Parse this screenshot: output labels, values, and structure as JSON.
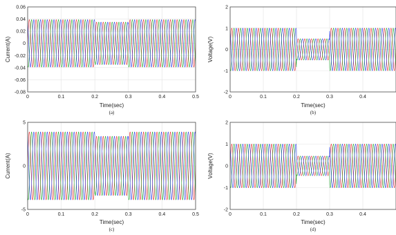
{
  "colors": {
    "phase_a": "#e02020",
    "phase_b": "#10a020",
    "phase_c": "#1a2ee0",
    "grid": "#e3e3e3",
    "axis": "#333333"
  },
  "chart_data": [
    {
      "type": "line",
      "id": "a",
      "caption": "(a)",
      "xlabel": "Time(sec)",
      "ylabel": "Current(A)",
      "xlim": [
        0,
        0.5
      ],
      "ylim": [
        -0.08,
        0.06
      ],
      "xticks": [
        "0",
        "0.1",
        "0.2",
        "0.3",
        "0.4",
        "0.5"
      ],
      "yticks": [
        "-0.08",
        "-0.06",
        "-0.04",
        "-0.02",
        "0",
        "0.02",
        "0.04",
        "0.06"
      ],
      "grid": true,
      "frequency_hz": 50,
      "series": [
        {
          "phase": 0,
          "color": "#e02020"
        },
        {
          "phase": 120,
          "color": "#10a020"
        },
        {
          "phase": 240,
          "color": "#1a2ee0"
        }
      ],
      "amplitude_segments": [
        {
          "from": 0,
          "to": 0.2,
          "amplitude": 0.039
        },
        {
          "from": 0.2,
          "to": 0.3,
          "amplitude": 0.035
        },
        {
          "from": 0.3,
          "to": 0.5,
          "amplitude": 0.039
        }
      ]
    },
    {
      "type": "line",
      "id": "b",
      "caption": "(b)",
      "xlabel": "Time(sec)",
      "ylabel": "Voltage(V)",
      "xlim": [
        0,
        0.5
      ],
      "ylim": [
        -2,
        2
      ],
      "xticks": [
        "0",
        "0.1",
        "0.2",
        "0.3",
        "0.4",
        ""
      ],
      "yticks": [
        "-2",
        "-1",
        "0",
        "1",
        "2"
      ],
      "grid": true,
      "frequency_hz": 50,
      "series": [
        {
          "phase": 0,
          "color": "#e02020"
        },
        {
          "phase": 120,
          "color": "#10a020"
        },
        {
          "phase": 240,
          "color": "#1a2ee0"
        }
      ],
      "amplitude_segments": [
        {
          "from": 0,
          "to": 0.2,
          "amplitude": 1.0
        },
        {
          "from": 0.2,
          "to": 0.3,
          "amplitude": 0.5
        },
        {
          "from": 0.3,
          "to": 0.5,
          "amplitude": 1.0
        }
      ]
    },
    {
      "type": "line",
      "id": "c",
      "caption": "(c)",
      "xlabel": "Time(sec)",
      "ylabel": "Current(A)",
      "xlim": [
        0,
        0.5
      ],
      "ylim": [
        -5,
        5
      ],
      "xticks": [
        "0",
        "0.1",
        "0.2",
        "0.3",
        "0.4",
        "0.5"
      ],
      "yticks": [
        "-5",
        "0",
        "5"
      ],
      "grid": true,
      "frequency_hz": 50,
      "series": [
        {
          "phase": 0,
          "color": "#e02020"
        },
        {
          "phase": 120,
          "color": "#10a020"
        },
        {
          "phase": 240,
          "color": "#1a2ee0"
        }
      ],
      "amplitude_segments": [
        {
          "from": 0,
          "to": 0.2,
          "amplitude": 3.9
        },
        {
          "from": 0.2,
          "to": 0.3,
          "amplitude": 3.4
        },
        {
          "from": 0.3,
          "to": 0.5,
          "amplitude": 3.9
        }
      ]
    },
    {
      "type": "line",
      "id": "d",
      "caption": "(d)",
      "xlabel": "Time(sec)",
      "ylabel": "Voltage(V)",
      "xlim": [
        0,
        0.5
      ],
      "ylim": [
        -2,
        2
      ],
      "xticks": [
        "0",
        "0.1",
        "0.2",
        "0.3",
        "0.4",
        ""
      ],
      "yticks": [
        "-2",
        "-1",
        "0",
        "1",
        "2"
      ],
      "grid": true,
      "frequency_hz": 50,
      "series": [
        {
          "phase": 0,
          "color": "#e02020"
        },
        {
          "phase": 120,
          "color": "#10a020"
        },
        {
          "phase": 240,
          "color": "#1a2ee0"
        }
      ],
      "amplitude_segments": [
        {
          "from": 0,
          "to": 0.2,
          "amplitude": 1.0
        },
        {
          "from": 0.2,
          "to": 0.3,
          "amplitude": 0.45
        },
        {
          "from": 0.3,
          "to": 0.5,
          "amplitude": 1.0
        }
      ]
    }
  ]
}
